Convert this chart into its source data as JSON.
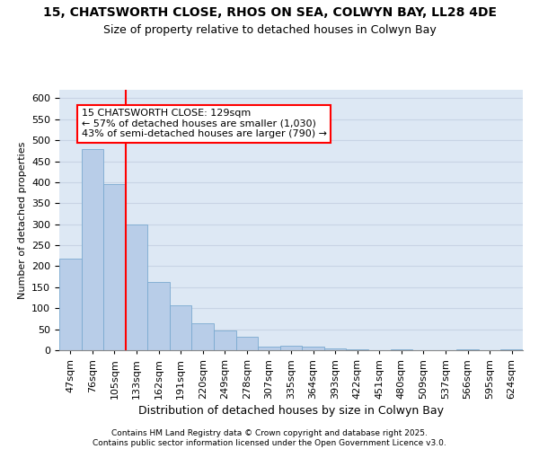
{
  "title": "15, CHATSWORTH CLOSE, RHOS ON SEA, COLWYN BAY, LL28 4DE",
  "subtitle": "Size of property relative to detached houses in Colwyn Bay",
  "xlabel": "Distribution of detached houses by size in Colwyn Bay",
  "ylabel": "Number of detached properties",
  "categories": [
    "47sqm",
    "76sqm",
    "105sqm",
    "133sqm",
    "162sqm",
    "191sqm",
    "220sqm",
    "249sqm",
    "278sqm",
    "307sqm",
    "335sqm",
    "364sqm",
    "393sqm",
    "422sqm",
    "451sqm",
    "480sqm",
    "509sqm",
    "537sqm",
    "566sqm",
    "595sqm",
    "624sqm"
  ],
  "values": [
    218,
    478,
    395,
    300,
    163,
    106,
    65,
    47,
    32,
    8,
    10,
    8,
    4,
    2,
    1,
    3,
    1,
    1,
    2,
    1,
    2
  ],
  "bar_color": "#b8cde8",
  "bar_edge_color": "#7aaad0",
  "vline_color": "red",
  "vline_x_index": 3,
  "annotation_text": "15 CHATSWORTH CLOSE: 129sqm\n← 57% of detached houses are smaller (1,030)\n43% of semi-detached houses are larger (790) →",
  "annotation_box_color": "white",
  "annotation_box_edge_color": "red",
  "ylim": [
    0,
    620
  ],
  "yticks": [
    0,
    50,
    100,
    150,
    200,
    250,
    300,
    350,
    400,
    450,
    500,
    550,
    600
  ],
  "grid_color": "#c8d4e4",
  "background_color": "#dde8f4",
  "footer_text": "Contains HM Land Registry data © Crown copyright and database right 2025.\nContains public sector information licensed under the Open Government Licence v3.0.",
  "title_fontsize": 10,
  "subtitle_fontsize": 9,
  "xlabel_fontsize": 9,
  "ylabel_fontsize": 8,
  "tick_fontsize": 8,
  "annotation_fontsize": 8,
  "footer_fontsize": 6.5
}
